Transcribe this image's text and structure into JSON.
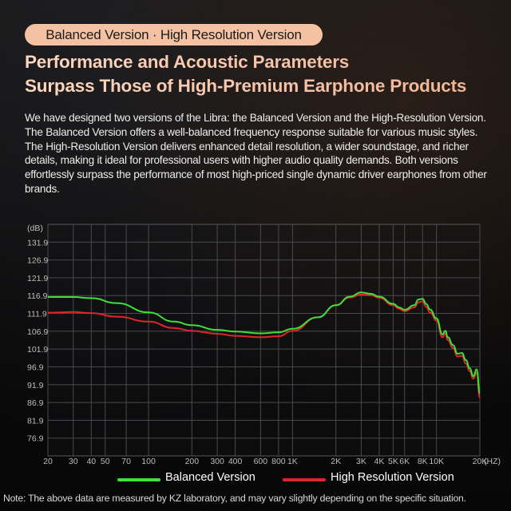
{
  "badge": "Balanced Version · High Resolution Version",
  "headline": [
    "Performance and Acoustic Parameters",
    "Surpass Those of High-Premium Earphone Products"
  ],
  "body_text": "We have designed two versions of the Libra: the Balanced Version and the High-Resolution Version. The Balanced Version offers a well-balanced frequency response suitable for various music styles. The High-Resolution Version delivers enhanced detail resolution, a wider soundstage, and richer details, making it ideal for professional users with higher audio quality demands. Both versions effortlessly surpass the performance of most high-priced single dynamic driver earphones from other brands.",
  "colors": {
    "balanced": "#3ee03a",
    "high_res": "#e0262a",
    "badge_bg": "#f4c2a3",
    "grid": "#4a4a4c"
  },
  "chart_data": {
    "type": "line",
    "xscale": "log",
    "xlabel": "(HZ)",
    "ylabel": "(dB)",
    "xlim": [
      20,
      20000
    ],
    "ylim": [
      71.9,
      136.9
    ],
    "ytick_values": [
      76.9,
      81.9,
      86.9,
      91.9,
      96.9,
      101.9,
      106.9,
      111.9,
      116.9,
      121.9,
      126.9,
      131.9
    ],
    "ytick_labels": [
      "76.9",
      "81.9",
      "86.9",
      "91.9",
      "96.9",
      "101.9",
      "106.9",
      "111.9",
      "116.9",
      "121.9",
      "126.9",
      "131.9"
    ],
    "xtick_values": [
      20,
      30,
      40,
      50,
      70,
      100,
      200,
      300,
      400,
      600,
      800,
      1000,
      2000,
      3000,
      4000,
      5000,
      6000,
      8000,
      10000,
      20000
    ],
    "xtick_labels": [
      "20",
      "30",
      "40",
      "50",
      "70",
      "100",
      "200",
      "300",
      "400",
      "600",
      "800",
      "1K",
      "2K",
      "3K",
      "4K",
      "5K",
      "6K",
      "8K",
      "10K",
      "20K"
    ],
    "grid": true,
    "series": [
      {
        "name": "Balanced Version",
        "x": [
          20,
          30,
          40,
          60,
          100,
          150,
          200,
          300,
          400,
          600,
          800,
          1000,
          1500,
          2000,
          2500,
          3000,
          3500,
          4000,
          5000,
          5500,
          6000,
          7000,
          7500,
          8000,
          8500,
          9000,
          10000,
          11000,
          11500,
          12000,
          13000,
          14000,
          15000,
          16000,
          17000,
          18000,
          19000,
          20000
        ],
        "y": [
          116.5,
          116.5,
          116.2,
          114.8,
          112.2,
          109.6,
          108.6,
          107.3,
          106.8,
          106.3,
          106.6,
          107.6,
          110.8,
          114.2,
          116.6,
          117.8,
          117.4,
          116.6,
          114.6,
          113.6,
          112.9,
          114.2,
          115.8,
          116.0,
          114.5,
          113.0,
          110.5,
          106.0,
          107.0,
          105.2,
          103.0,
          100.6,
          100.8,
          98.8,
          96.5,
          94.3,
          96.2,
          89.5
        ]
      },
      {
        "name": "High Resolution Version",
        "x": [
          20,
          30,
          40,
          60,
          100,
          150,
          200,
          300,
          400,
          600,
          800,
          1000,
          1500,
          2000,
          2500,
          3000,
          3500,
          4000,
          5000,
          5500,
          6000,
          7000,
          7500,
          8000,
          8500,
          9000,
          10000,
          11000,
          11500,
          12000,
          13000,
          14000,
          15000,
          16000,
          17000,
          18000,
          19000,
          20000
        ],
        "y": [
          112.1,
          112.3,
          112.0,
          111.0,
          109.6,
          107.8,
          107.0,
          106.2,
          105.6,
          105.2,
          105.5,
          107.0,
          110.8,
          114.2,
          116.4,
          117.2,
          117.0,
          116.3,
          114.2,
          113.2,
          112.5,
          113.6,
          115.0,
          115.3,
          113.7,
          112.2,
          109.9,
          105.2,
          106.2,
          104.4,
          102.2,
          99.8,
          100.0,
          97.8,
          95.7,
          93.6,
          95.2,
          88.2
        ]
      }
    ]
  },
  "legend": {
    "balanced": "Balanced Version",
    "high_res": "High Resolution Version"
  },
  "note": "Note: The above data are measured by KZ laboratory, and may vary slightly depending on the specific situation."
}
